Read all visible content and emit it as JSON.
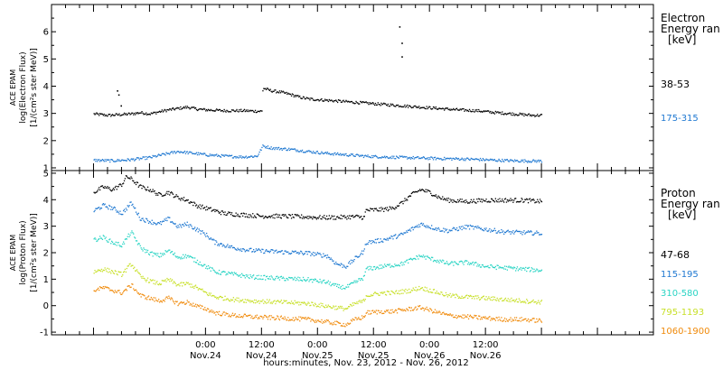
{
  "chart_data": [
    {
      "type": "scatter",
      "panel": "electron",
      "ylabel_lines": [
        "ACE EPAM",
        "log(Electron Flux)",
        "[1/(cm²s ster MeV)]"
      ],
      "ylim": [
        0.9,
        7.0
      ],
      "yticks": [
        1,
        2,
        3,
        4,
        5,
        6
      ],
      "legend_title_lines": [
        "Electron",
        "Energy ran",
        "[keV]"
      ],
      "series": [
        {
          "name": "38-53",
          "color": "#000000",
          "points": [
            [
              0,
              3.0
            ],
            [
              3,
              2.95
            ],
            [
              6,
              2.98
            ],
            [
              8,
              3.0
            ],
            [
              10,
              3.05
            ],
            [
              12,
              3.0
            ],
            [
              14,
              3.08
            ],
            [
              16,
              3.15
            ],
            [
              18,
              3.2
            ],
            [
              20,
              3.25
            ],
            [
              22,
              3.18
            ],
            [
              24,
              3.15
            ],
            [
              28,
              3.12
            ],
            [
              32,
              3.12
            ],
            [
              35,
              3.1
            ],
            [
              36,
              3.1
            ],
            [
              36.2,
              3.95
            ],
            [
              38,
              3.85
            ],
            [
              40,
              3.8
            ],
            [
              42,
              3.72
            ],
            [
              44,
              3.62
            ],
            [
              46,
              3.55
            ],
            [
              50,
              3.5
            ],
            [
              54,
              3.45
            ],
            [
              58,
              3.4
            ],
            [
              62,
              3.35
            ],
            [
              66,
              3.3
            ],
            [
              70,
              3.25
            ],
            [
              74,
              3.2
            ],
            [
              78,
              3.15
            ],
            [
              82,
              3.12
            ],
            [
              86,
              3.05
            ],
            [
              90,
              3.0
            ],
            [
              94,
              2.95
            ],
            [
              96,
              2.95
            ]
          ]
        },
        {
          "name": "175-315",
          "color": "#1f78d1",
          "points": [
            [
              0,
              1.3
            ],
            [
              4,
              1.28
            ],
            [
              8,
              1.32
            ],
            [
              12,
              1.4
            ],
            [
              16,
              1.55
            ],
            [
              18,
              1.62
            ],
            [
              20,
              1.58
            ],
            [
              24,
              1.5
            ],
            [
              28,
              1.45
            ],
            [
              32,
              1.42
            ],
            [
              35,
              1.45
            ],
            [
              36.2,
              1.82
            ],
            [
              38,
              1.75
            ],
            [
              42,
              1.7
            ],
            [
              46,
              1.62
            ],
            [
              50,
              1.55
            ],
            [
              54,
              1.5
            ],
            [
              58,
              1.45
            ],
            [
              62,
              1.42
            ],
            [
              66,
              1.4
            ],
            [
              70,
              1.38
            ],
            [
              74,
              1.36
            ],
            [
              78,
              1.35
            ],
            [
              82,
              1.33
            ],
            [
              86,
              1.3
            ],
            [
              90,
              1.28
            ],
            [
              94,
              1.27
            ],
            [
              96,
              1.27
            ]
          ]
        }
      ],
      "outliers": [
        [
          65.5,
          6.2
        ],
        [
          66,
          5.6
        ],
        [
          66,
          5.1
        ],
        [
          5,
          3.85
        ],
        [
          5.3,
          3.7
        ],
        [
          5.8,
          3.3
        ]
      ]
    },
    {
      "type": "scatter",
      "panel": "proton",
      "ylabel_lines": [
        "ACE EPAM",
        "log(Proton Flux)",
        "[1/(cm²s ster MeV)]"
      ],
      "ylim": [
        -1.1,
        5.1
      ],
      "yticks": [
        -1,
        0,
        1,
        2,
        3,
        4,
        5
      ],
      "legend_title_lines": [
        "Proton",
        "Energy ran",
        "[keV]"
      ],
      "series": [
        {
          "name": "47-68",
          "color": "#000000",
          "points": [
            [
              0,
              4.3
            ],
            [
              2,
              4.5
            ],
            [
              4,
              4.4
            ],
            [
              6,
              4.6
            ],
            [
              7,
              4.9
            ],
            [
              8,
              4.8
            ],
            [
              10,
              4.5
            ],
            [
              12,
              4.4
            ],
            [
              14,
              4.2
            ],
            [
              16,
              4.3
            ],
            [
              18,
              4.1
            ],
            [
              20,
              4.0
            ],
            [
              22,
              3.8
            ],
            [
              24,
              3.7
            ],
            [
              26,
              3.6
            ],
            [
              28,
              3.5
            ],
            [
              32,
              3.45
            ],
            [
              36,
              3.4
            ],
            [
              40,
              3.4
            ],
            [
              44,
              3.38
            ],
            [
              48,
              3.35
            ],
            [
              52,
              3.35
            ],
            [
              56,
              3.38
            ],
            [
              58,
              3.35
            ],
            [
              58.2,
              3.62
            ],
            [
              62,
              3.65
            ],
            [
              64,
              3.7
            ],
            [
              66,
              3.9
            ],
            [
              68,
              4.2
            ],
            [
              70,
              4.4
            ],
            [
              72,
              4.3
            ],
            [
              74,
              4.1
            ],
            [
              76,
              4.0
            ],
            [
              80,
              3.95
            ],
            [
              84,
              4.0
            ],
            [
              88,
              4.0
            ],
            [
              92,
              4.0
            ],
            [
              96,
              3.95
            ]
          ]
        },
        {
          "name": "115-195",
          "color": "#1f78d1",
          "points": [
            [
              0,
              3.6
            ],
            [
              2,
              3.8
            ],
            [
              4,
              3.7
            ],
            [
              6,
              3.5
            ],
            [
              8,
              3.9
            ],
            [
              10,
              3.3
            ],
            [
              12,
              3.2
            ],
            [
              14,
              3.1
            ],
            [
              16,
              3.3
            ],
            [
              18,
              3.0
            ],
            [
              20,
              3.1
            ],
            [
              22,
              2.9
            ],
            [
              24,
              2.7
            ],
            [
              26,
              2.4
            ],
            [
              30,
              2.2
            ],
            [
              34,
              2.1
            ],
            [
              40,
              2.05
            ],
            [
              46,
              2.0
            ],
            [
              50,
              1.9
            ],
            [
              52,
              1.6
            ],
            [
              54,
              1.5
            ],
            [
              56,
              1.8
            ],
            [
              58,
              2.1
            ],
            [
              58.2,
              2.4
            ],
            [
              62,
              2.5
            ],
            [
              64,
              2.6
            ],
            [
              66,
              2.7
            ],
            [
              68,
              2.9
            ],
            [
              70,
              3.1
            ],
            [
              72,
              3.0
            ],
            [
              74,
              2.9
            ],
            [
              76,
              2.85
            ],
            [
              80,
              3.0
            ],
            [
              84,
              2.9
            ],
            [
              88,
              2.8
            ],
            [
              92,
              2.78
            ],
            [
              96,
              2.75
            ]
          ]
        },
        {
          "name": "310-580",
          "color": "#2ad4c4",
          "points": [
            [
              0,
              2.5
            ],
            [
              2,
              2.6
            ],
            [
              4,
              2.4
            ],
            [
              6,
              2.3
            ],
            [
              8,
              2.8
            ],
            [
              10,
              2.2
            ],
            [
              12,
              2.0
            ],
            [
              14,
              1.9
            ],
            [
              16,
              2.1
            ],
            [
              18,
              1.85
            ],
            [
              20,
              1.9
            ],
            [
              22,
              1.7
            ],
            [
              24,
              1.5
            ],
            [
              26,
              1.3
            ],
            [
              30,
              1.2
            ],
            [
              34,
              1.1
            ],
            [
              40,
              1.05
            ],
            [
              46,
              1.0
            ],
            [
              50,
              0.9
            ],
            [
              52,
              0.75
            ],
            [
              54,
              0.7
            ],
            [
              56,
              0.9
            ],
            [
              58,
              1.1
            ],
            [
              58.2,
              1.4
            ],
            [
              62,
              1.5
            ],
            [
              64,
              1.55
            ],
            [
              66,
              1.6
            ],
            [
              68,
              1.75
            ],
            [
              70,
              1.9
            ],
            [
              72,
              1.8
            ],
            [
              74,
              1.7
            ],
            [
              76,
              1.6
            ],
            [
              80,
              1.65
            ],
            [
              84,
              1.5
            ],
            [
              88,
              1.45
            ],
            [
              92,
              1.4
            ],
            [
              96,
              1.35
            ]
          ]
        },
        {
          "name": "795-1193",
          "color": "#c8e02a",
          "points": [
            [
              0,
              1.3
            ],
            [
              2,
              1.4
            ],
            [
              4,
              1.3
            ],
            [
              6,
              1.2
            ],
            [
              8,
              1.6
            ],
            [
              10,
              1.1
            ],
            [
              12,
              0.95
            ],
            [
              14,
              0.85
            ],
            [
              16,
              1.0
            ],
            [
              18,
              0.8
            ],
            [
              20,
              0.85
            ],
            [
              22,
              0.7
            ],
            [
              24,
              0.5
            ],
            [
              26,
              0.35
            ],
            [
              30,
              0.25
            ],
            [
              34,
              0.2
            ],
            [
              40,
              0.15
            ],
            [
              46,
              0.1
            ],
            [
              50,
              0.0
            ],
            [
              52,
              -0.05
            ],
            [
              54,
              -0.1
            ],
            [
              56,
              0.1
            ],
            [
              58,
              0.2
            ],
            [
              58.2,
              0.4
            ],
            [
              62,
              0.5
            ],
            [
              64,
              0.5
            ],
            [
              66,
              0.55
            ],
            [
              68,
              0.6
            ],
            [
              70,
              0.7
            ],
            [
              72,
              0.6
            ],
            [
              74,
              0.5
            ],
            [
              76,
              0.4
            ],
            [
              80,
              0.35
            ],
            [
              84,
              0.3
            ],
            [
              88,
              0.25
            ],
            [
              92,
              0.2
            ],
            [
              96,
              0.15
            ]
          ]
        },
        {
          "name": "1060-1900",
          "color": "#f08a0a",
          "points": [
            [
              0,
              0.6
            ],
            [
              2,
              0.7
            ],
            [
              4,
              0.6
            ],
            [
              6,
              0.5
            ],
            [
              8,
              0.8
            ],
            [
              10,
              0.4
            ],
            [
              12,
              0.3
            ],
            [
              14,
              0.2
            ],
            [
              16,
              0.3
            ],
            [
              18,
              0.1
            ],
            [
              20,
              0.15
            ],
            [
              22,
              0.0
            ],
            [
              24,
              -0.1
            ],
            [
              26,
              -0.25
            ],
            [
              30,
              -0.35
            ],
            [
              34,
              -0.4
            ],
            [
              40,
              -0.45
            ],
            [
              46,
              -0.5
            ],
            [
              50,
              -0.6
            ],
            [
              52,
              -0.65
            ],
            [
              54,
              -0.7
            ],
            [
              56,
              -0.5
            ],
            [
              58,
              -0.4
            ],
            [
              58.2,
              -0.25
            ],
            [
              62,
              -0.2
            ],
            [
              64,
              -0.2
            ],
            [
              66,
              -0.15
            ],
            [
              68,
              -0.1
            ],
            [
              70,
              -0.05
            ],
            [
              72,
              -0.15
            ],
            [
              74,
              -0.25
            ],
            [
              76,
              -0.35
            ],
            [
              80,
              -0.4
            ],
            [
              84,
              -0.45
            ],
            [
              88,
              -0.5
            ],
            [
              92,
              -0.5
            ],
            [
              96,
              -0.55
            ]
          ]
        }
      ]
    }
  ],
  "x_axis": {
    "unit": "hours since 2012-11-23 00:00 UT",
    "range": [
      -9,
      120
    ],
    "data_range": [
      0,
      96
    ],
    "major_ticks": [
      {
        "hours": 24,
        "time": "0:00",
        "date": "Nov.24"
      },
      {
        "hours": 36,
        "time": "12:00",
        "date": "Nov.24"
      },
      {
        "hours": 48,
        "time": "0:00",
        "date": "Nov.25"
      },
      {
        "hours": 60,
        "time": "12:00",
        "date": "Nov.25"
      },
      {
        "hours": 72,
        "time": "0:00",
        "date": "Nov.26"
      },
      {
        "hours": 84,
        "time": "12:00",
        "date": "Nov.26"
      }
    ],
    "xlabel": "hours:minutes, Nov. 23, 2012 - Nov. 26, 2012"
  }
}
